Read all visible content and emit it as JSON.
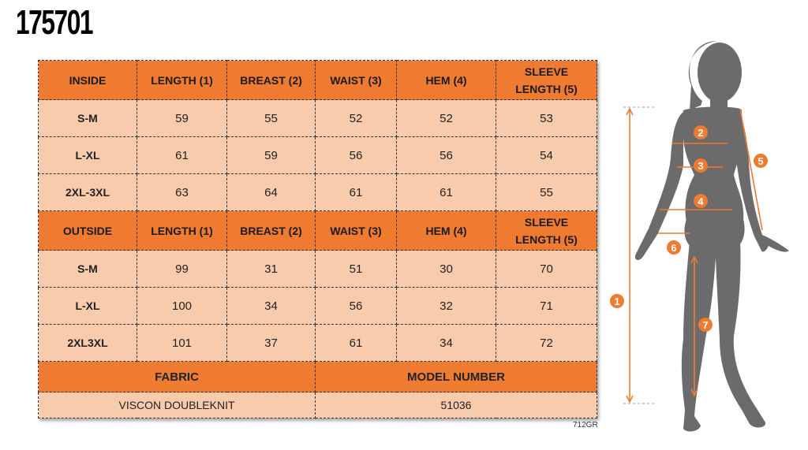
{
  "product_code": "175701",
  "inside": {
    "headers": [
      "INSIDE",
      "LENGTH (1)",
      "BREAST (2)",
      "WAIST (3)",
      "HEM (4)",
      "SLEEVE LENGTH (5)"
    ],
    "rows": [
      [
        "S-M",
        "59",
        "55",
        "52",
        "52",
        "53"
      ],
      [
        "L-XL",
        "61",
        "59",
        "56",
        "56",
        "54"
      ],
      [
        "2XL-3XL",
        "63",
        "64",
        "61",
        "61",
        "55"
      ]
    ]
  },
  "outside": {
    "headers": [
      "OUTSIDE",
      "LENGTH (1)",
      "BREAST (2)",
      "WAIST (3)",
      "HEM (4)",
      "SLEEVE LENGTH (5)"
    ],
    "rows": [
      [
        "S-M",
        "99",
        "31",
        "51",
        "30",
        "70"
      ],
      [
        "L-XL",
        "100",
        "34",
        "56",
        "32",
        "71"
      ],
      [
        "2XL3XL",
        "101",
        "37",
        "61",
        "34",
        "72"
      ]
    ]
  },
  "fabric": {
    "label": "FABRIC",
    "value": "VISCON DOUBLEKNIT"
  },
  "model_number": {
    "label": "MODEL NUMBER",
    "value": "51036"
  },
  "footnote": "712GR",
  "figure": {
    "markers": [
      "1",
      "2",
      "3",
      "4",
      "5",
      "6",
      "7"
    ]
  },
  "colors": {
    "header": "#ee7b30",
    "cell": "#f8cbad",
    "marker": "#ee7b30",
    "silhouette": "#6b6b6b"
  }
}
